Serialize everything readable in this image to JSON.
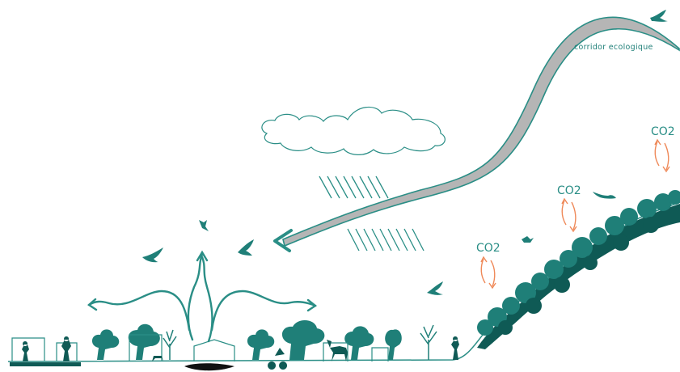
{
  "labels": {
    "corridor": "corridor ecologique",
    "co2": [
      "CO2",
      "CO2",
      "CO2"
    ]
  },
  "colors": {
    "teal": "#1f7f78",
    "teal_dark": "#0f5a55",
    "outline": "#2a8e86",
    "corridor_fill": "#b5b5b5",
    "co2_cycle": "#ef8a5a",
    "water_body": "#111111"
  },
  "icons": [
    "bird-icon",
    "cloud-icon",
    "rain-icon",
    "tree-icon",
    "person-icon",
    "deer-icon",
    "dog-icon",
    "cyclist-icon",
    "co2-cycle-arrow-icon"
  ]
}
